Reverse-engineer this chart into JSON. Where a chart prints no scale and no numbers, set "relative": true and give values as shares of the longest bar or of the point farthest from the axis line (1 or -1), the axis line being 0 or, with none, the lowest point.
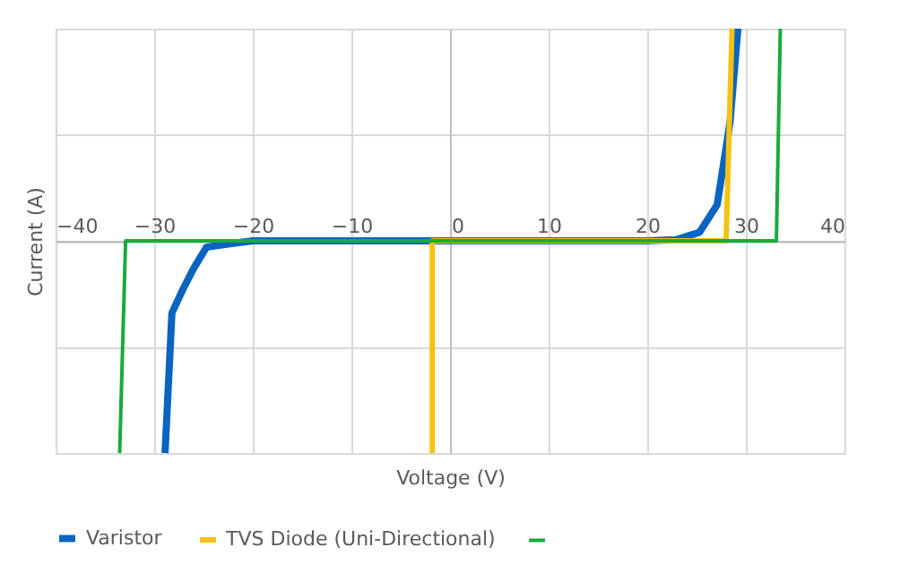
{
  "chart_data": {
    "type": "line",
    "xlabel": "Voltage (V)",
    "ylabel": "Current (A)",
    "relative": true,
    "xlim": [
      -40,
      40
    ],
    "xticks": [
      -40,
      -30,
      -20,
      -10,
      0,
      10,
      20,
      30,
      40
    ],
    "grid": true,
    "legend": "bottom left",
    "marker": "none",
    "series": [
      {
        "name": "Varistor",
        "color": "#0a64c0",
        "x": [
          -28.9,
          -28.2,
          -27.1,
          -26,
          -24.7,
          -22.5,
          -20,
          0,
          20,
          22.9,
          25.3,
          27.1,
          28.4,
          29.2
        ],
        "values": [
          -1,
          -0.34,
          -0.23,
          -0.13,
          -0.03,
          -0.015,
          0,
          0,
          0,
          0.005,
          0.04,
          0.17,
          0.56,
          1
        ]
      },
      {
        "name": "TVS Diode (Uni-Directional)",
        "color": "#f5c211",
        "x": [
          -1.8,
          -1.8,
          28,
          28.6
        ],
        "values": [
          -1,
          0,
          0,
          1
        ]
      },
      {
        "color": "#1aaa3c",
        "x": [
          -33.5,
          -32.9,
          33.1,
          33.5
        ],
        "values": [
          -1,
          0,
          0,
          1
        ]
      }
    ]
  }
}
